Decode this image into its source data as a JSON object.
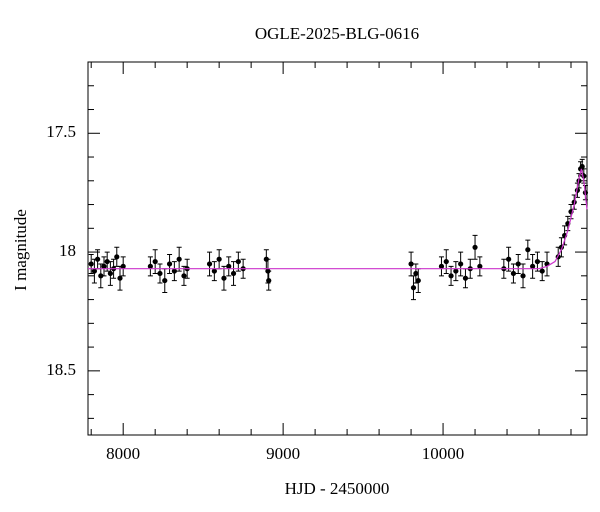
{
  "chart_data": {
    "type": "scatter",
    "title": "OGLE-2025-BLG-0616",
    "xlabel": "HJD - 2450000",
    "ylabel": "I magnitude",
    "xlim": [
      7780,
      10900
    ],
    "ylim": [
      17.2,
      18.77
    ],
    "y_inverted": true,
    "xticks": [
      8000,
      9000,
      10000
    ],
    "yticks": [
      17.5,
      18,
      18.5
    ],
    "xminorticks": [
      7800,
      8200,
      8400,
      8600,
      8800,
      9200,
      9400,
      9600,
      9800,
      10200,
      10400,
      10600,
      10800
    ],
    "yminorticks": [
      17.3,
      17.4,
      17.6,
      17.7,
      17.8,
      17.9,
      18.1,
      18.2,
      18.3,
      18.4,
      18.6,
      18.7
    ],
    "series": [
      {
        "type": "scatter",
        "color": "#000000",
        "x": [
          7800,
          7820,
          7840,
          7860,
          7880,
          7900,
          7920,
          7940,
          7960,
          7980,
          8000,
          8170,
          8200,
          8230,
          8260,
          8290,
          8320,
          8350,
          8380,
          8400,
          8540,
          8570,
          8600,
          8630,
          8660,
          8690,
          8720,
          8750,
          8895,
          8905,
          8910,
          9800,
          9815,
          9830,
          9845,
          9990,
          10020,
          10050,
          10080,
          10110,
          10140,
          10170,
          10200,
          10230,
          10380,
          10410,
          10440,
          10470,
          10500,
          10530,
          10560,
          10590,
          10620,
          10650,
          10720,
          10740,
          10760,
          10780,
          10800,
          10820,
          10840,
          10850,
          10860,
          10870,
          10880,
          10890
        ],
        "values": [
          18.05,
          18.08,
          18.03,
          18.1,
          18.06,
          18.04,
          18.09,
          18.07,
          18.02,
          18.11,
          18.06,
          18.06,
          18.04,
          18.09,
          18.12,
          18.05,
          18.08,
          18.03,
          18.1,
          18.07,
          18.05,
          18.08,
          18.03,
          18.11,
          18.06,
          18.09,
          18.04,
          18.07,
          18.03,
          18.08,
          18.12,
          18.05,
          18.15,
          18.09,
          18.12,
          18.06,
          18.04,
          18.1,
          18.08,
          18.05,
          18.11,
          18.07,
          17.98,
          18.06,
          18.07,
          18.03,
          18.09,
          18.05,
          18.1,
          17.99,
          18.06,
          18.04,
          18.08,
          18.05,
          18.02,
          17.98,
          17.93,
          17.88,
          17.83,
          17.79,
          17.74,
          17.7,
          17.65,
          17.64,
          17.68,
          17.75
        ],
        "errors": [
          0.04,
          0.05,
          0.04,
          0.05,
          0.04,
          0.04,
          0.05,
          0.04,
          0.04,
          0.05,
          0.04,
          0.04,
          0.05,
          0.04,
          0.05,
          0.04,
          0.04,
          0.05,
          0.04,
          0.04,
          0.05,
          0.04,
          0.04,
          0.05,
          0.04,
          0.05,
          0.04,
          0.04,
          0.04,
          0.05,
          0.04,
          0.05,
          0.05,
          0.04,
          0.05,
          0.04,
          0.05,
          0.04,
          0.04,
          0.05,
          0.04,
          0.04,
          0.05,
          0.04,
          0.04,
          0.05,
          0.04,
          0.04,
          0.05,
          0.04,
          0.05,
          0.04,
          0.04,
          0.05,
          0.04,
          0.04,
          0.04,
          0.03,
          0.03,
          0.03,
          0.03,
          0.03,
          0.03,
          0.03,
          0.03,
          0.03
        ]
      },
      {
        "type": "line",
        "color": "#cc33cc",
        "x": [
          7780,
          10600,
          10650,
          10700,
          10740,
          10780,
          10820,
          10850,
          10865,
          10880,
          10900
        ],
        "values": [
          18.07,
          18.07,
          18.06,
          18.04,
          17.99,
          17.91,
          17.8,
          17.69,
          17.65,
          17.7,
          17.82
        ]
      }
    ]
  }
}
